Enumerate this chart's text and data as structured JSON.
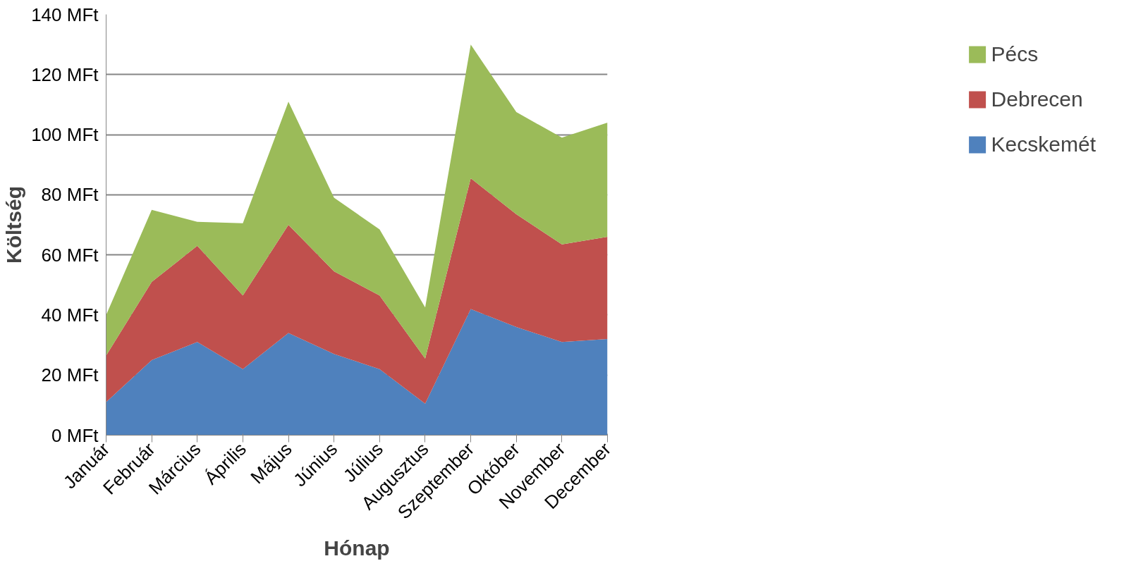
{
  "chart_data": {
    "type": "area",
    "stacked": true,
    "xlabel": "Hónap",
    "ylabel": "Költség",
    "categories": [
      "Január",
      "Február",
      "Március",
      "Április",
      "Május",
      "Június",
      "Július",
      "Augusztus",
      "Szeptember",
      "Október",
      "November",
      "December"
    ],
    "series": [
      {
        "name": "Kecskemét",
        "color": "#4f81bd",
        "values": [
          11,
          25,
          31,
          22,
          34,
          27,
          22,
          10.5,
          42,
          36,
          31,
          32
        ]
      },
      {
        "name": "Debrecen",
        "color": "#c0504d",
        "values": [
          15.5,
          26,
          32,
          24.5,
          36,
          27.5,
          24.5,
          15,
          43.5,
          37.5,
          32.5,
          34
        ]
      },
      {
        "name": "Pécs",
        "color": "#9bbb59",
        "values": [
          13.5,
          24,
          8,
          24,
          41,
          24.5,
          22,
          17,
          44.5,
          34,
          35.5,
          38
        ]
      }
    ],
    "ylim": [
      0,
      140
    ],
    "yticks": [
      {
        "value": 0,
        "label": "0 MFt"
      },
      {
        "value": 20,
        "label": "20 MFt"
      },
      {
        "value": 40,
        "label": "40 MFt"
      },
      {
        "value": 60,
        "label": "60 MFt"
      },
      {
        "value": 80,
        "label": "80 MFt"
      },
      {
        "value": 100,
        "label": "100 MFt"
      },
      {
        "value": 120,
        "label": "120 MFt"
      },
      {
        "value": 140,
        "label": "140 MFt"
      }
    ],
    "grid": "y",
    "legend": "right"
  }
}
